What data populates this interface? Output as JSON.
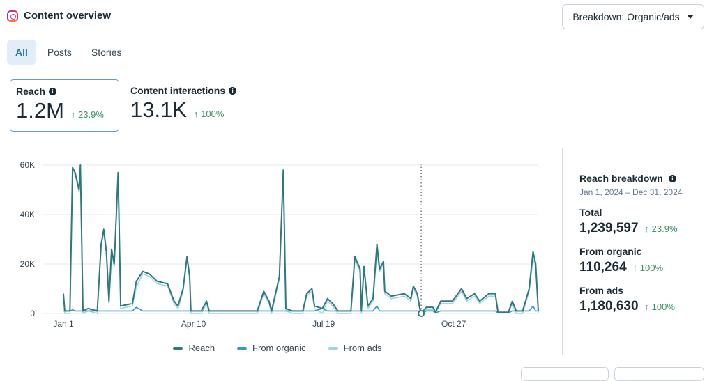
{
  "header": {
    "title": "Content overview",
    "icon": "instagram-icon",
    "breakdown_label": "Breakdown: Organic/ads"
  },
  "tabs": [
    {
      "label": "All",
      "active": true
    },
    {
      "label": "Posts"
    },
    {
      "label": "Stories"
    }
  ],
  "metrics": [
    {
      "label": "Reach",
      "value": "1.2M",
      "delta": "↑ 23.9%",
      "selected": true
    },
    {
      "label": "Content interactions",
      "value": "13.1K",
      "delta": "↑ 100%"
    }
  ],
  "breakdown": {
    "title": "Reach breakdown",
    "range": "Jan 1, 2024 – Dec 31, 2024",
    "rows": [
      {
        "label": "Total",
        "value": "1,239,597",
        "delta": "↑ 23.9%"
      },
      {
        "label": "From organic",
        "value": "110,264",
        "delta": "↑ 100%"
      },
      {
        "label": "From ads",
        "value": "1,180,630",
        "delta": "↑ 100%"
      }
    ]
  },
  "colors": {
    "reach": "#2e7a7a",
    "organic": "#3b95c4",
    "ads": "#9fd3ea",
    "delta": "#3f9268",
    "accent": "#1e6fb5"
  },
  "chart_data": {
    "type": "line",
    "x_range": [
      "2024-01-01",
      "2024-12-31"
    ],
    "ylim": [
      0,
      60000
    ],
    "yticks": [
      {
        "v": 0,
        "label": "0"
      },
      {
        "v": 20000,
        "label": "20K"
      },
      {
        "v": 40000,
        "label": "40K"
      },
      {
        "v": 60000,
        "label": "60K"
      }
    ],
    "xticks": [
      {
        "date": "2024-01-01",
        "label": "Jan 1"
      },
      {
        "date": "2024-04-10",
        "label": "Apr 10"
      },
      {
        "date": "2024-07-19",
        "label": "Jul 19"
      },
      {
        "date": "2024-10-27",
        "label": "Oct 27"
      }
    ],
    "marker_date": "2024-10-02",
    "grid": true,
    "legend_placement": "bottom",
    "series": [
      {
        "key": "reach",
        "name": "Reach"
      },
      {
        "key": "organic",
        "name": "From organic"
      },
      {
        "key": "ads",
        "name": "From ads"
      }
    ],
    "points": [
      {
        "date": "2024-01-01",
        "reach": 8000,
        "organic": 1000,
        "ads": 7000
      },
      {
        "date": "2024-01-02",
        "reach": 1000,
        "organic": 1000,
        "ads": 0
      },
      {
        "date": "2024-01-06",
        "reach": 1000,
        "organic": 1000,
        "ads": 0
      },
      {
        "date": "2024-01-08",
        "reach": 59000,
        "organic": 1500,
        "ads": 57500
      },
      {
        "date": "2024-01-10",
        "reach": 57000,
        "organic": 1000,
        "ads": 56000
      },
      {
        "date": "2024-01-13",
        "reach": 50000,
        "organic": 1000,
        "ads": 49000
      },
      {
        "date": "2024-01-14",
        "reach": 60000,
        "organic": 1000,
        "ads": 59000
      },
      {
        "date": "2024-01-16",
        "reach": 1000,
        "organic": 1000,
        "ads": 0
      },
      {
        "date": "2024-01-20",
        "reach": 2000,
        "organic": 1000,
        "ads": 1000
      },
      {
        "date": "2024-01-27",
        "reach": 1000,
        "organic": 1000,
        "ads": 0
      },
      {
        "date": "2024-01-30",
        "reach": 28000,
        "organic": 1000,
        "ads": 27000
      },
      {
        "date": "2024-02-01",
        "reach": 34000,
        "organic": 1000,
        "ads": 33000
      },
      {
        "date": "2024-02-03",
        "reach": 25000,
        "organic": 1000,
        "ads": 24000
      },
      {
        "date": "2024-02-05",
        "reach": 5000,
        "organic": 1000,
        "ads": 4000
      },
      {
        "date": "2024-02-07",
        "reach": 26000,
        "organic": 1000,
        "ads": 25000
      },
      {
        "date": "2024-02-09",
        "reach": 20000,
        "organic": 1000,
        "ads": 19000
      },
      {
        "date": "2024-02-12",
        "reach": 57000,
        "organic": 1000,
        "ads": 56000
      },
      {
        "date": "2024-02-14",
        "reach": 3000,
        "organic": 1000,
        "ads": 2000
      },
      {
        "date": "2024-02-18",
        "reach": 3500,
        "organic": 1000,
        "ads": 2500
      },
      {
        "date": "2024-02-23",
        "reach": 4000,
        "organic": 1000,
        "ads": 3000
      },
      {
        "date": "2024-02-26",
        "reach": 13000,
        "organic": 2500,
        "ads": 10500
      },
      {
        "date": "2024-03-02",
        "reach": 17000,
        "organic": 1000,
        "ads": 16000
      },
      {
        "date": "2024-03-07",
        "reach": 16000,
        "organic": 1000,
        "ads": 15000
      },
      {
        "date": "2024-03-13",
        "reach": 13000,
        "organic": 1000,
        "ads": 12000
      },
      {
        "date": "2024-03-21",
        "reach": 12000,
        "organic": 1000,
        "ads": 11000
      },
      {
        "date": "2024-03-26",
        "reach": 5000,
        "organic": 1000,
        "ads": 4000
      },
      {
        "date": "2024-03-29",
        "reach": 3000,
        "organic": 1000,
        "ads": 2000
      },
      {
        "date": "2024-04-02",
        "reach": 10000,
        "organic": 1000,
        "ads": 9000
      },
      {
        "date": "2024-04-05",
        "reach": 23000,
        "organic": 1000,
        "ads": 22000
      },
      {
        "date": "2024-04-07",
        "reach": 15000,
        "organic": 1000,
        "ads": 14000
      },
      {
        "date": "2024-04-08",
        "reach": 1000,
        "organic": 1000,
        "ads": 0
      },
      {
        "date": "2024-04-16",
        "reach": 1000,
        "organic": 1000,
        "ads": 0
      },
      {
        "date": "2024-04-20",
        "reach": 5000,
        "organic": 1000,
        "ads": 4000
      },
      {
        "date": "2024-04-22",
        "reach": 1000,
        "organic": 1000,
        "ads": 0
      },
      {
        "date": "2024-05-08",
        "reach": 1000,
        "organic": 1000,
        "ads": 0
      },
      {
        "date": "2024-05-29",
        "reach": 1000,
        "organic": 1000,
        "ads": 0
      },
      {
        "date": "2024-06-03",
        "reach": 9000,
        "organic": 1000,
        "ads": 8000
      },
      {
        "date": "2024-06-07",
        "reach": 5000,
        "organic": 1000,
        "ads": 4000
      },
      {
        "date": "2024-06-09",
        "reach": 1000,
        "organic": 1000,
        "ads": 0
      },
      {
        "date": "2024-06-15",
        "reach": 15000,
        "organic": 1000,
        "ads": 14000
      },
      {
        "date": "2024-06-18",
        "reach": 58000,
        "organic": 1000,
        "ads": 57000
      },
      {
        "date": "2024-06-20",
        "reach": 2000,
        "organic": 1000,
        "ads": 1000
      },
      {
        "date": "2024-06-25",
        "reach": 1000,
        "organic": 1000,
        "ads": 0
      },
      {
        "date": "2024-07-03",
        "reach": 1000,
        "organic": 1000,
        "ads": 0
      },
      {
        "date": "2024-07-06",
        "reach": 8000,
        "organic": 1000,
        "ads": 7000
      },
      {
        "date": "2024-07-10",
        "reach": 10000,
        "organic": 1000,
        "ads": 9000
      },
      {
        "date": "2024-07-12",
        "reach": 3000,
        "organic": 1000,
        "ads": 2000
      },
      {
        "date": "2024-07-18",
        "reach": 2000,
        "organic": 2000,
        "ads": 0
      },
      {
        "date": "2024-07-22",
        "reach": 6000,
        "organic": 1000,
        "ads": 5000
      },
      {
        "date": "2024-07-26",
        "reach": 4000,
        "organic": 1000,
        "ads": 3000
      },
      {
        "date": "2024-07-30",
        "reach": 1000,
        "organic": 1000,
        "ads": 0
      },
      {
        "date": "2024-08-09",
        "reach": 1000,
        "organic": 1000,
        "ads": 0
      },
      {
        "date": "2024-08-12",
        "reach": 23000,
        "organic": 1000,
        "ads": 22000
      },
      {
        "date": "2024-08-16",
        "reach": 18000,
        "organic": 1000,
        "ads": 17000
      },
      {
        "date": "2024-08-17",
        "reach": 1000,
        "organic": 1000,
        "ads": 0
      },
      {
        "date": "2024-08-19",
        "reach": 19000,
        "organic": 1000,
        "ads": 18000
      },
      {
        "date": "2024-08-22",
        "reach": 3000,
        "organic": 1000,
        "ads": 2000
      },
      {
        "date": "2024-08-26",
        "reach": 6000,
        "organic": 1000,
        "ads": 5000
      },
      {
        "date": "2024-08-29",
        "reach": 28000,
        "organic": 3000,
        "ads": 25000
      },
      {
        "date": "2024-08-31",
        "reach": 18000,
        "organic": 1000,
        "ads": 17000
      },
      {
        "date": "2024-09-03",
        "reach": 21000,
        "organic": 1000,
        "ads": 20000
      },
      {
        "date": "2024-09-04",
        "reach": 9000,
        "organic": 1000,
        "ads": 8000
      },
      {
        "date": "2024-09-09",
        "reach": 7000,
        "organic": 1000,
        "ads": 6000
      },
      {
        "date": "2024-09-19",
        "reach": 8000,
        "organic": 1000,
        "ads": 7000
      },
      {
        "date": "2024-09-24",
        "reach": 6000,
        "organic": 1000,
        "ads": 5000
      },
      {
        "date": "2024-09-26",
        "reach": 11000,
        "organic": 1000,
        "ads": 10000
      },
      {
        "date": "2024-09-29",
        "reach": 8000,
        "organic": 1000,
        "ads": 7000
      },
      {
        "date": "2024-10-01",
        "reach": 2000,
        "organic": 1000,
        "ads": 1000
      },
      {
        "date": "2024-10-02",
        "reach": 0,
        "organic": 0,
        "ads": 0
      },
      {
        "date": "2024-10-06",
        "reach": 2500,
        "organic": 1000,
        "ads": 1500
      },
      {
        "date": "2024-10-11",
        "reach": 2500,
        "organic": 1000,
        "ads": 1500
      },
      {
        "date": "2024-10-13",
        "reach": 500,
        "organic": 250,
        "ads": 250
      },
      {
        "date": "2024-10-17",
        "reach": 5000,
        "organic": 1000,
        "ads": 4000
      },
      {
        "date": "2024-10-26",
        "reach": 5000,
        "organic": 1000,
        "ads": 4000
      },
      {
        "date": "2024-11-02",
        "reach": 10000,
        "organic": 1000,
        "ads": 9000
      },
      {
        "date": "2024-11-06",
        "reach": 6000,
        "organic": 1000,
        "ads": 5000
      },
      {
        "date": "2024-11-12",
        "reach": 8000,
        "organic": 1000,
        "ads": 7000
      },
      {
        "date": "2024-11-16",
        "reach": 5000,
        "organic": 1000,
        "ads": 4000
      },
      {
        "date": "2024-11-23",
        "reach": 8000,
        "organic": 1000,
        "ads": 7000
      },
      {
        "date": "2024-11-28",
        "reach": 8000,
        "organic": 1000,
        "ads": 7000
      },
      {
        "date": "2024-11-30",
        "reach": 500,
        "organic": 250,
        "ads": 250
      },
      {
        "date": "2024-12-08",
        "reach": 500,
        "organic": 250,
        "ads": 250
      },
      {
        "date": "2024-12-11",
        "reach": 5000,
        "organic": 1000,
        "ads": 4000
      },
      {
        "date": "2024-12-14",
        "reach": 1000,
        "organic": 1000,
        "ads": 0
      },
      {
        "date": "2024-12-19",
        "reach": 1000,
        "organic": 1000,
        "ads": 0
      },
      {
        "date": "2024-12-24",
        "reach": 10000,
        "organic": 1000,
        "ads": 9000
      },
      {
        "date": "2024-12-27",
        "reach": 25000,
        "organic": 3000,
        "ads": 22000
      },
      {
        "date": "2024-12-29",
        "reach": 20000,
        "organic": 1000,
        "ads": 19000
      },
      {
        "date": "2024-12-31",
        "reach": 1000,
        "organic": 1000,
        "ads": 0
      }
    ]
  }
}
